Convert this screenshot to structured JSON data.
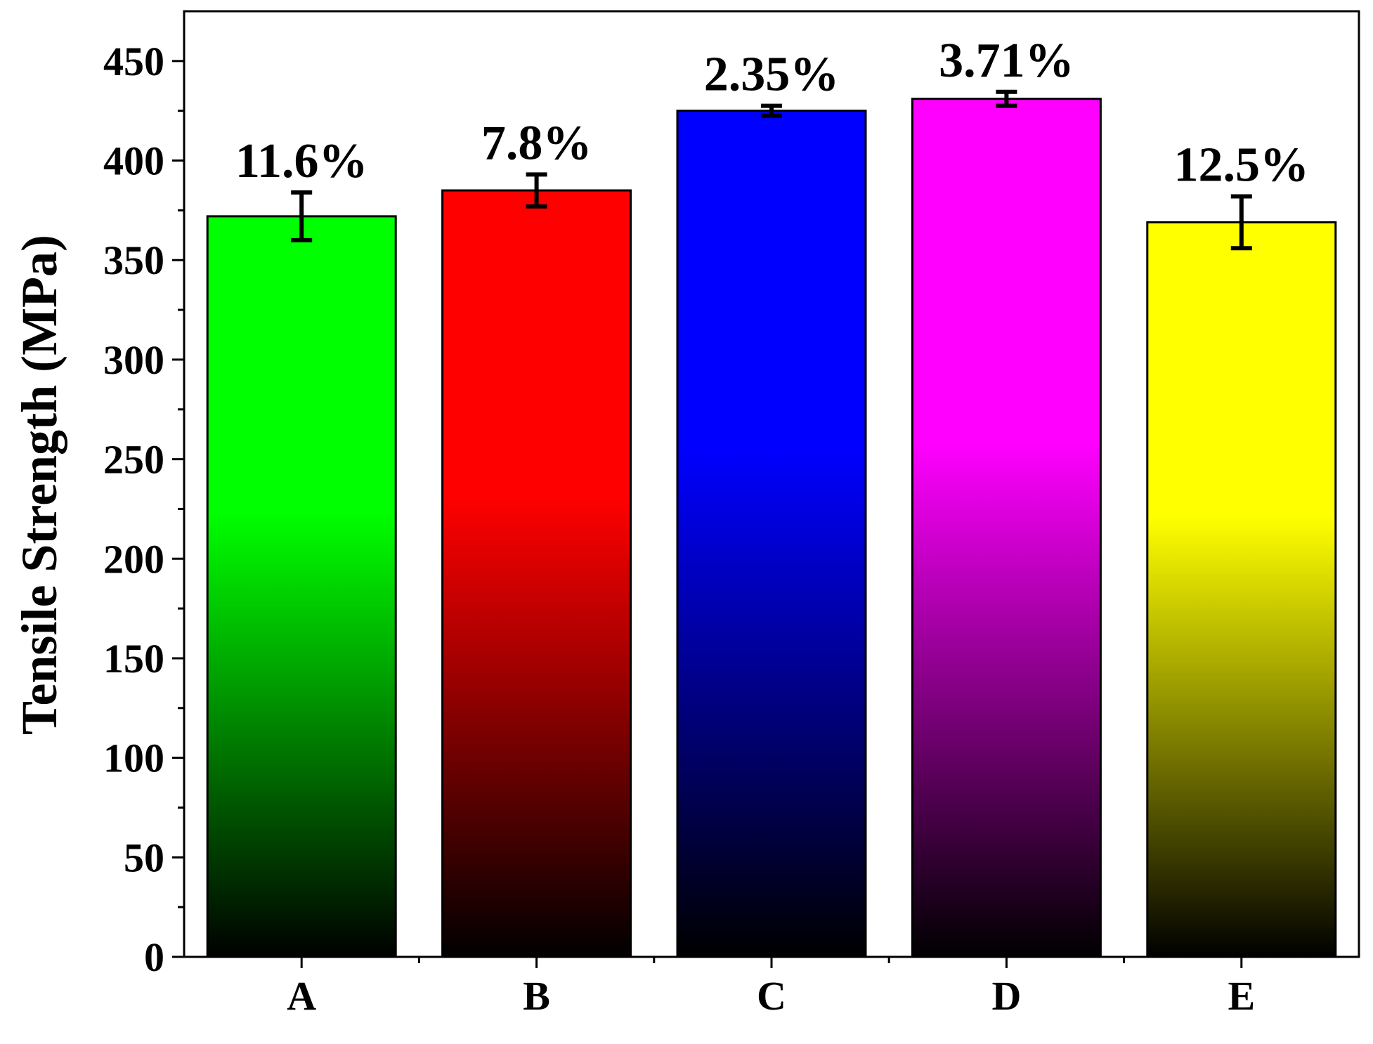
{
  "chart_data": {
    "type": "bar",
    "title": "",
    "xlabel": "",
    "ylabel": "Tensile Strength (MPa)",
    "categories": [
      "A",
      "B",
      "C",
      "D",
      "E"
    ],
    "values": [
      372,
      385,
      425,
      431,
      369
    ],
    "errors": [
      12,
      8,
      2.5,
      3.5,
      13
    ],
    "annotations": [
      "11.6%",
      "7.8%",
      "2.35%",
      "3.71%",
      "12.5%"
    ],
    "colors": [
      "#00ff00",
      "#ff0000",
      "#0000ff",
      "#ff00ff",
      "#ffff00"
    ],
    "gradient_end_color": "#000000",
    "ylim": [
      0,
      475
    ],
    "yticks": [
      0,
      50,
      100,
      150,
      200,
      250,
      300,
      350,
      400,
      450
    ],
    "ytick_labels": [
      "0",
      "50",
      "100",
      "150",
      "200",
      "250",
      "300",
      "350",
      "400",
      "450"
    ],
    "minor_y_step": 25,
    "grid": false,
    "legend": "none"
  }
}
